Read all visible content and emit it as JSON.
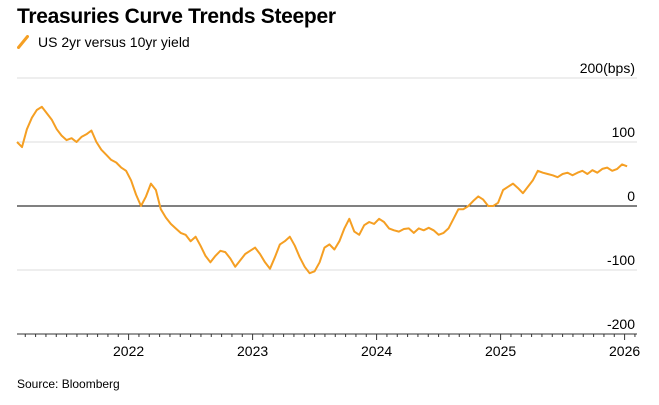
{
  "title": "Treasuries Curve Trends Steeper",
  "legend": {
    "label": "US 2yr versus 10yr yield",
    "color": "#f59f23"
  },
  "source": "Source: Bloomberg",
  "chart_data": {
    "type": "line",
    "title": "Treasuries Curve Trends Steeper",
    "xlabel": "",
    "ylabel": "bps",
    "ylim": [
      -200,
      200
    ],
    "xlim": [
      2021.1,
      2026.1
    ],
    "y_ticks": [
      -200,
      -100,
      0,
      100,
      200
    ],
    "y_tick_labels": [
      "-200",
      "-100",
      "0",
      "100",
      "200(bps)"
    ],
    "x_ticks": [
      2022,
      2023,
      2024,
      2025,
      2026
    ],
    "x_tick_labels": [
      "2022",
      "2023",
      "2024",
      "2025",
      "2026"
    ],
    "grid": true,
    "series": [
      {
        "name": "US 2yr versus 10yr yield",
        "color": "#f59f23",
        "x": [
          2021.1,
          2021.14,
          2021.18,
          2021.22,
          2021.26,
          2021.3,
          2021.34,
          2021.38,
          2021.42,
          2021.46,
          2021.5,
          2021.54,
          2021.58,
          2021.62,
          2021.66,
          2021.7,
          2021.74,
          2021.78,
          2021.82,
          2021.86,
          2021.9,
          2021.94,
          2021.98,
          2022.02,
          2022.06,
          2022.1,
          2022.14,
          2022.18,
          2022.22,
          2022.26,
          2022.3,
          2022.34,
          2022.38,
          2022.42,
          2022.46,
          2022.5,
          2022.54,
          2022.58,
          2022.62,
          2022.66,
          2022.7,
          2022.74,
          2022.78,
          2022.82,
          2022.86,
          2022.9,
          2022.94,
          2022.98,
          2023.02,
          2023.06,
          2023.1,
          2023.14,
          2023.18,
          2023.22,
          2023.26,
          2023.3,
          2023.34,
          2023.38,
          2023.42,
          2023.46,
          2023.5,
          2023.54,
          2023.58,
          2023.62,
          2023.66,
          2023.7,
          2023.74,
          2023.78,
          2023.82,
          2023.86,
          2023.9,
          2023.94,
          2023.98,
          2024.02,
          2024.06,
          2024.1,
          2024.14,
          2024.18,
          2024.22,
          2024.26,
          2024.3,
          2024.34,
          2024.38,
          2024.42,
          2024.46,
          2024.5,
          2024.54,
          2024.58,
          2024.62,
          2024.66,
          2024.7,
          2024.74,
          2024.78,
          2024.82,
          2024.86,
          2024.9,
          2024.94,
          2024.98,
          2025.02,
          2025.06,
          2025.1,
          2025.14,
          2025.18,
          2025.22,
          2025.26,
          2025.3,
          2025.34,
          2025.38,
          2025.42,
          2025.46,
          2025.5,
          2025.54,
          2025.58,
          2025.62,
          2025.66,
          2025.7,
          2025.74,
          2025.78,
          2025.82,
          2025.86,
          2025.9,
          2025.94,
          2025.98,
          2026.02
        ],
        "values": [
          100,
          92,
          120,
          138,
          150,
          155,
          145,
          135,
          120,
          110,
          103,
          106,
          100,
          108,
          112,
          118,
          100,
          88,
          80,
          72,
          68,
          60,
          55,
          40,
          18,
          0,
          15,
          35,
          25,
          -5,
          -18,
          -28,
          -35,
          -42,
          -45,
          -55,
          -48,
          -62,
          -78,
          -88,
          -78,
          -70,
          -72,
          -82,
          -95,
          -85,
          -75,
          -70,
          -65,
          -75,
          -88,
          -98,
          -80,
          -60,
          -55,
          -48,
          -62,
          -80,
          -95,
          -105,
          -102,
          -88,
          -65,
          -60,
          -68,
          -55,
          -35,
          -20,
          -40,
          -45,
          -30,
          -25,
          -28,
          -20,
          -25,
          -35,
          -38,
          -40,
          -36,
          -35,
          -42,
          -35,
          -38,
          -34,
          -38,
          -45,
          -42,
          -35,
          -20,
          -5,
          -5,
          0,
          8,
          15,
          10,
          0,
          0,
          5,
          25,
          30,
          35,
          28,
          20,
          30,
          40,
          55,
          52,
          50,
          48,
          45,
          50,
          52,
          48,
          52,
          55,
          50,
          56,
          52,
          58,
          60,
          55,
          58,
          65,
          62
        ]
      }
    ]
  }
}
